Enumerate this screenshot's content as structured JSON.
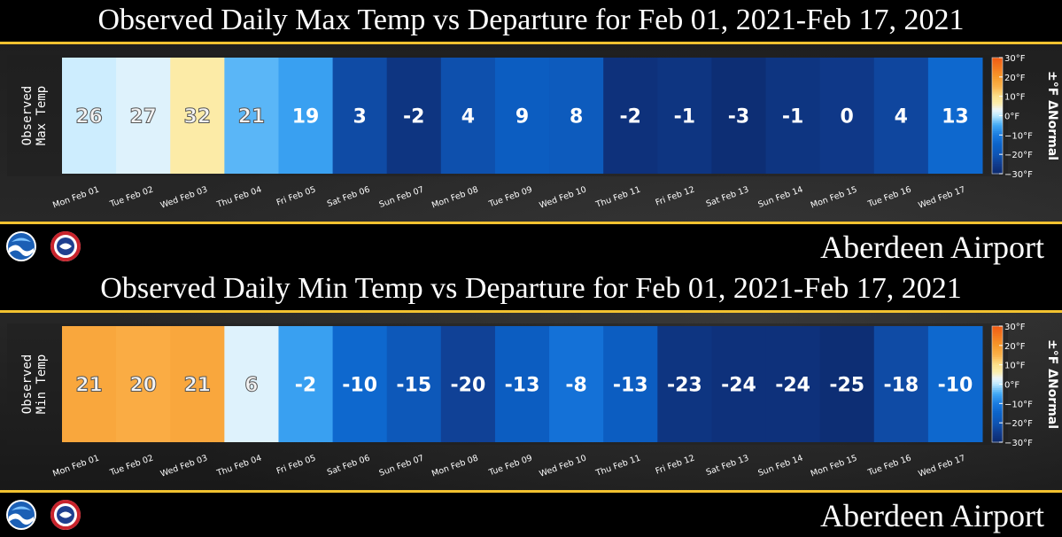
{
  "chart_data": [
    {
      "type": "heatmap",
      "title": "Observed Daily Max Temp vs Departure for Feb 01, 2021-Feb 17, 2021",
      "ylabel": [
        "Observed",
        "Max Temp"
      ],
      "categories": [
        "Mon Feb 01",
        "Tue Feb 02",
        "Wed Feb 03",
        "Thu Feb 04",
        "Fri Feb 05",
        "Sat Feb 06",
        "Sun Feb 07",
        "Mon Feb 08",
        "Tue Feb 09",
        "Wed Feb 10",
        "Thu Feb 11",
        "Fri Feb 12",
        "Sat Feb 13",
        "Sun Feb 14",
        "Mon Feb 15",
        "Tue Feb 16",
        "Wed Feb 17"
      ],
      "values": [
        26,
        27,
        32,
        21,
        19,
        3,
        -2,
        4,
        9,
        8,
        -2,
        -1,
        -3,
        -1,
        0,
        4,
        13
      ],
      "departures": [
        1,
        2,
        7,
        -4,
        -6,
        -22,
        -27,
        -21,
        -17,
        -18,
        -28,
        -27,
        -29,
        -27,
        -26,
        -23,
        -14
      ],
      "colorbar": {
        "label": "±°F ΔNormal",
        "ticks": [
          "30°F",
          "20°F",
          "10°F",
          "0°F",
          "−10°F",
          "−20°F",
          "−30°F"
        ],
        "range": [
          -30,
          30
        ]
      },
      "location": "Aberdeen Airport"
    },
    {
      "type": "heatmap",
      "title": "Observed Daily Min Temp vs Departure for Feb 01, 2021-Feb 17, 2021",
      "ylabel": [
        "Observed",
        "Min Temp"
      ],
      "categories": [
        "Mon Feb 01",
        "Tue Feb 02",
        "Wed Feb 03",
        "Thu Feb 04",
        "Fri Feb 05",
        "Sat Feb 06",
        "Sun Feb 07",
        "Mon Feb 08",
        "Tue Feb 09",
        "Wed Feb 10",
        "Thu Feb 11",
        "Fri Feb 12",
        "Sat Feb 13",
        "Sun Feb 14",
        "Mon Feb 15",
        "Tue Feb 16",
        "Wed Feb 17"
      ],
      "values": [
        21,
        20,
        21,
        6,
        -2,
        -10,
        -15,
        -20,
        -13,
        -8,
        -13,
        -23,
        -24,
        -24,
        -25,
        -18,
        -10
      ],
      "departures": [
        17,
        16,
        17,
        2,
        -6,
        -14,
        -19,
        -24,
        -17,
        -12,
        -17,
        -27,
        -28,
        -28,
        -29,
        -22,
        -14
      ],
      "colorbar": {
        "label": "±°F ΔNormal",
        "ticks": [
          "30°F",
          "20°F",
          "10°F",
          "0°F",
          "−10°F",
          "−20°F",
          "−30°F"
        ],
        "range": [
          -30,
          30
        ]
      },
      "location": "Aberdeen Airport"
    }
  ],
  "colors": {
    "gold": "#f2c230",
    "scale": [
      [
        -30,
        "#0c2a6e"
      ],
      [
        -25,
        "#103c8e"
      ],
      [
        -20,
        "#0e55b5"
      ],
      [
        -15,
        "#0b63c9"
      ],
      [
        -10,
        "#1a7be0"
      ],
      [
        -5,
        "#41a9f5"
      ],
      [
        0,
        "#bde9ff"
      ],
      [
        3,
        "#eef6fb"
      ],
      [
        6,
        "#fbeeb0"
      ],
      [
        10,
        "#fde08a"
      ],
      [
        15,
        "#fbb14a"
      ],
      [
        20,
        "#f7982a"
      ],
      [
        30,
        "#f05a14"
      ]
    ]
  },
  "logos": {
    "left": "noaa-logo",
    "right": "nws-logo"
  }
}
